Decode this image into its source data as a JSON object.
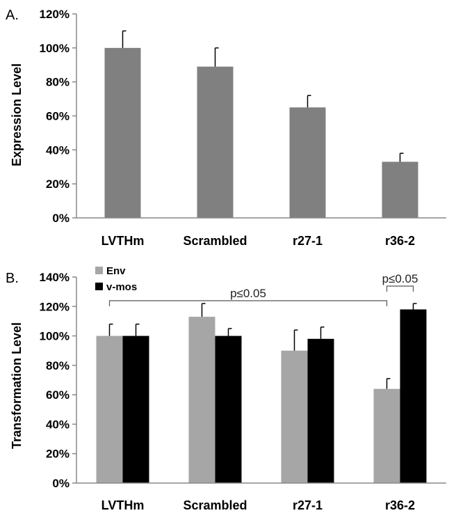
{
  "colors": {
    "panel_a_bar": "#808080",
    "env": "#a6a6a6",
    "vmos": "#000000",
    "axis": "#888888",
    "annotation": "#555555"
  },
  "chart_data": [
    {
      "type": "bar",
      "panel_label": "A.",
      "ylabel": "Expression Level",
      "xlabel": "",
      "categories": [
        "LVTHm",
        "Scrambled",
        "r27-1",
        "r36-2"
      ],
      "series": [
        {
          "values": [
            100,
            89,
            65,
            33
          ],
          "errors": [
            10,
            11,
            7,
            5
          ]
        }
      ],
      "ylim": [
        0,
        120
      ],
      "y_ticks": [
        0,
        20,
        40,
        60,
        80,
        100,
        120
      ],
      "y_tick_labels": [
        "0%",
        "20%",
        "40%",
        "60%",
        "80%",
        "100%",
        "120%"
      ],
      "grid": false,
      "legend": "none"
    },
    {
      "type": "bar",
      "panel_label": "B.",
      "ylabel": "Transformation Level",
      "xlabel": "",
      "categories": [
        "LVTHm",
        "Scrambled",
        "r27-1",
        "r36-2"
      ],
      "series": [
        {
          "name": "Env",
          "values": [
            100,
            113,
            90,
            64
          ],
          "errors": [
            8,
            9,
            14,
            7
          ]
        },
        {
          "name": "v-mos",
          "values": [
            100,
            100,
            98,
            118
          ],
          "errors": [
            8,
            5,
            8,
            4
          ]
        }
      ],
      "ylim": [
        0,
        140
      ],
      "y_ticks": [
        0,
        20,
        40,
        60,
        80,
        100,
        120,
        140
      ],
      "y_tick_labels": [
        "0%",
        "20%",
        "40%",
        "60%",
        "80%",
        "100%",
        "120%",
        "140%"
      ],
      "grid": false,
      "legend": "top-left",
      "annotations": [
        {
          "text": "p≤0.05",
          "from": "LVTHm Env",
          "to": "r36-2 Env"
        },
        {
          "text": "p≤0.05",
          "from": "r36-2 Env",
          "to": "r36-2 v-mos"
        }
      ]
    }
  ]
}
